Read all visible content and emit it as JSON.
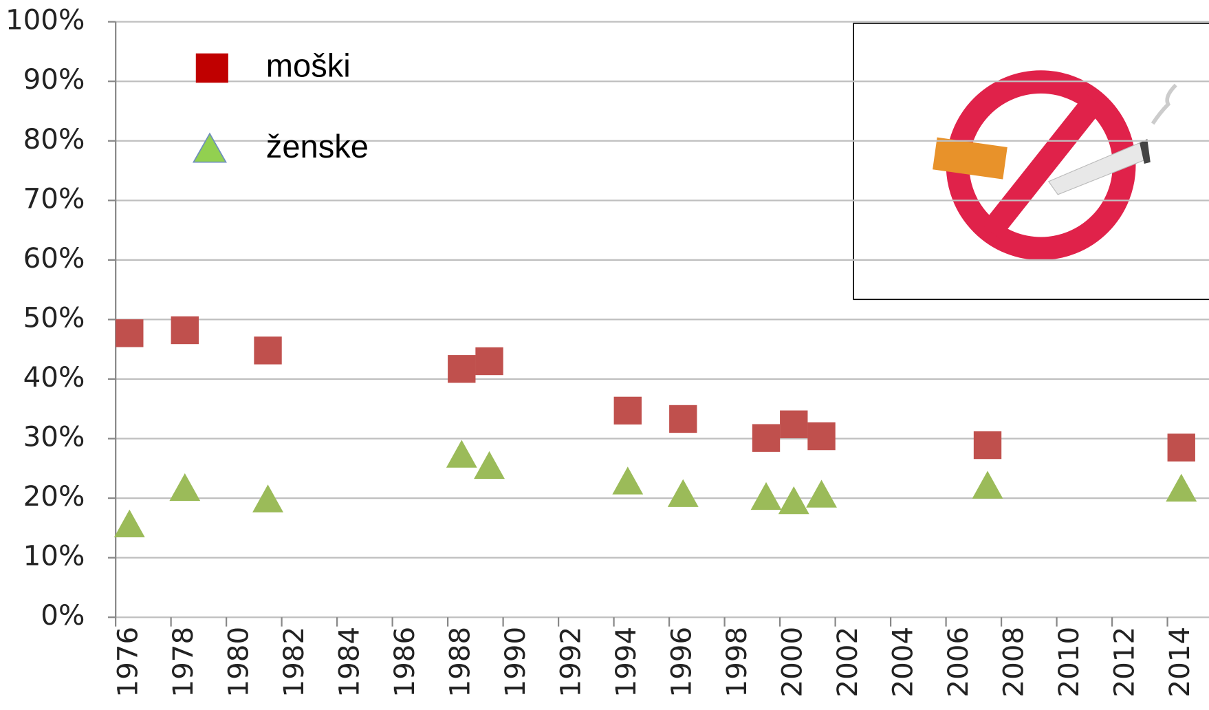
{
  "chart_data": {
    "type": "scatter",
    "xlim": [
      1975.5,
      2015
    ],
    "xticks": [
      1976,
      1978,
      1980,
      1982,
      1984,
      1986,
      1988,
      1990,
      1992,
      1994,
      1996,
      1998,
      2000,
      2002,
      2004,
      2006,
      2008,
      2010,
      2012,
      2014
    ],
    "ylim": [
      0,
      100
    ],
    "yticks": [
      {
        "value": 0,
        "label": "0%"
      },
      {
        "value": 10,
        "label": "10%"
      },
      {
        "value": 20,
        "label": "20%"
      },
      {
        "value": 30,
        "label": "30%"
      },
      {
        "value": 40,
        "label": "40%"
      },
      {
        "value": 50,
        "label": "50%"
      },
      {
        "value": 60,
        "label": "60%"
      },
      {
        "value": 70,
        "label": "70%"
      },
      {
        "value": 80,
        "label": "80%"
      },
      {
        "value": 90,
        "label": "90%"
      },
      {
        "value": 100,
        "label": "100%"
      }
    ],
    "grid": true,
    "series": [
      {
        "name": "moški",
        "color": "#c0504d",
        "marker": "square",
        "x": [
          1976,
          1978,
          1981,
          1988,
          1989,
          1994,
          1996,
          1999,
          2000,
          2001,
          2007,
          2014
        ],
        "values": [
          47.7,
          48.2,
          44.8,
          41.7,
          43.0,
          34.7,
          33.3,
          30.1,
          32.4,
          30.4,
          28.9,
          28.5
        ]
      },
      {
        "name": "ženske",
        "color": "#9bbb59",
        "marker": "triangle",
        "x": [
          1976,
          1978,
          1981,
          1988,
          1989,
          1994,
          1996,
          1999,
          2000,
          2001,
          2007,
          2014
        ],
        "values": [
          15.5,
          21.6,
          19.7,
          27.2,
          25.3,
          22.7,
          20.6,
          20.1,
          19.4,
          20.5,
          22.0,
          21.5
        ]
      }
    ]
  }
}
